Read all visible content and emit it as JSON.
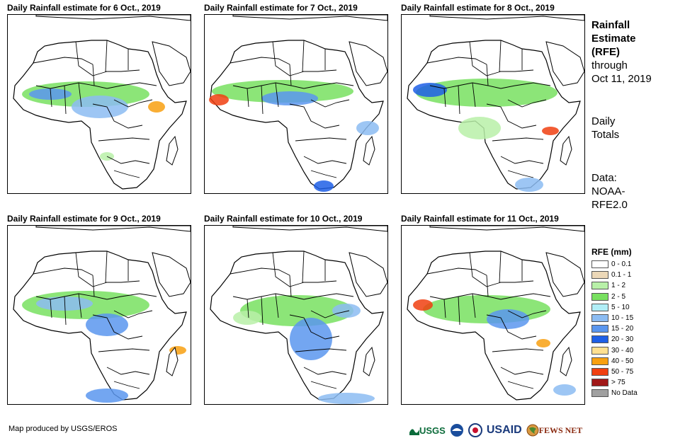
{
  "panels": [
    {
      "title": "Daily Rainfall estimate for 6 Oct., 2019"
    },
    {
      "title": "Daily Rainfall estimate for 7 Oct., 2019"
    },
    {
      "title": "Daily Rainfall estimate for 8 Oct., 2019"
    },
    {
      "title": "Daily Rainfall estimate for 9 Oct., 2019"
    },
    {
      "title": "Daily Rainfall estimate for 10 Oct., 2019"
    },
    {
      "title": "Daily Rainfall estimate for 11 Oct., 2019"
    }
  ],
  "side_info": {
    "heading_lines": [
      "Rainfall",
      "Estimate",
      "(RFE)"
    ],
    "through_lines": [
      "through",
      "Oct 11, 2019"
    ],
    "totals_lines": [
      "Daily",
      "Totals"
    ],
    "data_lines": [
      "Data:",
      "NOAA-",
      "RFE2.0"
    ]
  },
  "legend": {
    "title": "RFE (mm)",
    "items": [
      {
        "label": "0 - 0.1",
        "color": "#ffffff"
      },
      {
        "label": "0.1 - 1",
        "color": "#ecd8b8"
      },
      {
        "label": "1 - 2",
        "color": "#b8f0a8"
      },
      {
        "label": "2 - 5",
        "color": "#78e060"
      },
      {
        "label": "5 - 10",
        "color": "#b0eef6"
      },
      {
        "label": "10 - 15",
        "color": "#8cbcf2"
      },
      {
        "label": "15 - 20",
        "color": "#5a96ee"
      },
      {
        "label": "20 - 30",
        "color": "#1e5fe6"
      },
      {
        "label": "30 - 40",
        "color": "#ffe090"
      },
      {
        "label": "40 - 50",
        "color": "#f8a010"
      },
      {
        "label": "50 - 75",
        "color": "#f04010"
      },
      {
        "label": "> 75",
        "color": "#a01818"
      },
      {
        "label": "No Data",
        "color": "#a0a0a0"
      }
    ]
  },
  "footer": {
    "credit": "Map produced by USGS/EROS"
  },
  "logos": {
    "usgs": "USGS",
    "usaid": "USAID",
    "fews": "FEWS NET"
  }
}
